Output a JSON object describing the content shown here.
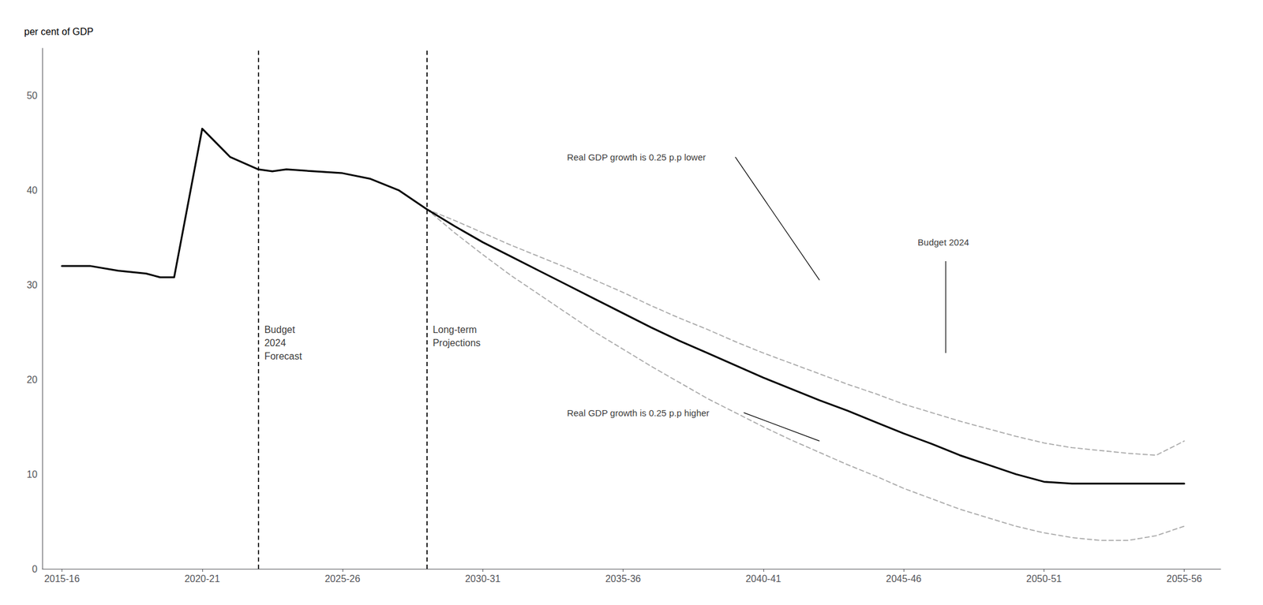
{
  "chart_data": {
    "type": "line",
    "ylabel": "per cent of GDP",
    "xlim": [
      2014.8,
      2056.8
    ],
    "ylim": [
      0,
      55
    ],
    "yticks": [
      0,
      10,
      20,
      30,
      40,
      50
    ],
    "xticks": [
      {
        "value": 2015.5,
        "label": "2015-16"
      },
      {
        "value": 2020.5,
        "label": "2020-21"
      },
      {
        "value": 2025.5,
        "label": "2025-26"
      },
      {
        "value": 2030.5,
        "label": "2030-31"
      },
      {
        "value": 2035.5,
        "label": "2035-36"
      },
      {
        "value": 2040.5,
        "label": "2040-41"
      },
      {
        "value": 2045.5,
        "label": "2045-46"
      },
      {
        "value": 2050.5,
        "label": "2050-51"
      },
      {
        "value": 2055.5,
        "label": "2055-56"
      }
    ],
    "grid": false,
    "series": [
      {
        "color": "#aaaaaa",
        "line_style": "dashed",
        "x": [
          2028.5,
          2029.5,
          2030.5,
          2031.5,
          2032.5,
          2033.5,
          2034.5,
          2035.5,
          2036.5,
          2037.5,
          2038.5,
          2039.5,
          2040.5,
          2041.5,
          2042.5,
          2043.5,
          2044.5,
          2045.5,
          2046.5,
          2047.5,
          2048.5,
          2049.5,
          2050.5,
          2051.5,
          2052.5,
          2053.5,
          2054.5,
          2055.5
        ],
        "values": [
          38.0,
          36.8,
          35.5,
          34.2,
          33.0,
          31.8,
          30.5,
          29.2,
          27.8,
          26.5,
          25.3,
          24.0,
          22.8,
          21.7,
          20.6,
          19.5,
          18.5,
          17.4,
          16.5,
          15.6,
          14.8,
          14.0,
          13.3,
          12.8,
          12.5,
          12.2,
          12.0,
          13.5
        ]
      },
      {
        "color": "#aaaaaa",
        "line_style": "dashed",
        "x": [
          2028.5,
          2029.5,
          2030.5,
          2031.5,
          2032.5,
          2033.5,
          2034.5,
          2035.5,
          2036.5,
          2037.5,
          2038.5,
          2039.5,
          2040.5,
          2041.5,
          2042.5,
          2043.5,
          2044.5,
          2045.5,
          2046.5,
          2047.5,
          2048.5,
          2049.5,
          2050.5,
          2051.5,
          2052.5,
          2053.5,
          2054.5,
          2055.5
        ],
        "values": [
          38.0,
          35.5,
          33.2,
          31.0,
          29.0,
          27.0,
          25.0,
          23.2,
          21.4,
          19.7,
          18.0,
          16.5,
          15.0,
          13.6,
          12.3,
          11.0,
          9.8,
          8.5,
          7.4,
          6.3,
          5.4,
          4.5,
          3.8,
          3.3,
          3.0,
          3.0,
          3.5,
          4.5
        ]
      },
      {
        "color": "#000000",
        "line_style": "solid",
        "x": [
          2015.5,
          2016.5,
          2017.5,
          2018.5,
          2019.0,
          2019.5,
          2020.5,
          2021.5,
          2022.5,
          2023.0,
          2023.5,
          2024.5,
          2025.5,
          2026.5,
          2027.5,
          2028.5,
          2029.5,
          2030.5,
          2031.5,
          2032.5,
          2033.5,
          2034.5,
          2035.5,
          2036.5,
          2037.5,
          2038.5,
          2039.5,
          2040.5,
          2041.5,
          2042.5,
          2043.5,
          2044.5,
          2045.5,
          2046.5,
          2047.5,
          2048.5,
          2049.5,
          2050.5,
          2051.5,
          2052.5,
          2053.5,
          2054.5,
          2055.5
        ],
        "values": [
          32.0,
          32.0,
          31.5,
          31.2,
          30.8,
          30.8,
          46.5,
          43.5,
          42.2,
          42.0,
          42.2,
          42.0,
          41.8,
          41.2,
          40.0,
          38.0,
          36.2,
          34.5,
          33.0,
          31.5,
          30.0,
          28.5,
          27.0,
          25.5,
          24.1,
          22.8,
          21.5,
          20.2,
          19.0,
          17.8,
          16.7,
          15.5,
          14.3,
          13.2,
          12.0,
          11.0,
          10.0,
          9.2,
          9.0,
          9.0,
          9.0,
          9.0,
          9.0
        ]
      }
    ],
    "vlines": [
      {
        "x": 2022.5,
        "label": "Budget\n2024\nForecast",
        "label_y": 26,
        "color": "#000000"
      },
      {
        "x": 2028.5,
        "label": "Long-term\nProjections",
        "label_y": 26,
        "color": "#000000"
      }
    ],
    "annotations": [
      {
        "text": "Real GDP growth is 0.25 p.p lower",
        "x": 2033.5,
        "y": 43.5,
        "line": [
          [
            2039.5,
            43.5
          ],
          [
            2042.5,
            30.5
          ]
        ]
      },
      {
        "text": "Budget 2024",
        "x": 2046.0,
        "y": 34.5,
        "line": [
          [
            2047.0,
            32.5
          ],
          [
            2047.0,
            22.8
          ]
        ]
      },
      {
        "text": "Real GDP growth is 0.25 p.p higher",
        "x": 2033.5,
        "y": 16.5,
        "line": [
          [
            2039.8,
            16.5
          ],
          [
            2042.5,
            13.5
          ]
        ]
      }
    ]
  }
}
